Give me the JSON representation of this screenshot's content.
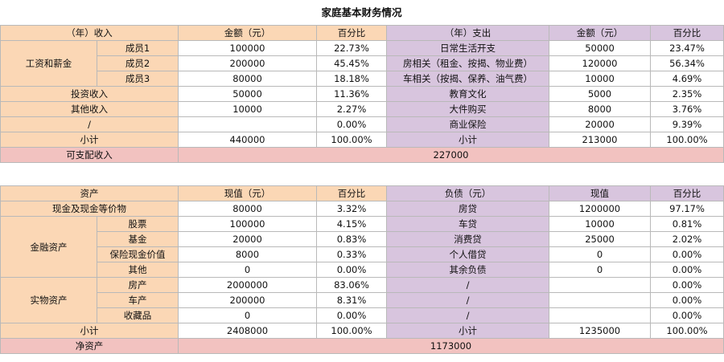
{
  "title": "家庭基本财务情况",
  "income": {
    "header": [
      "（年）收入",
      "金额（元）",
      "百分比",
      "（年）支出",
      "金额（元）",
      "百分比"
    ],
    "salary_group": "工资和薪金",
    "members": [
      {
        "name": "成员1",
        "amount": "100000",
        "pct": "22.73%"
      },
      {
        "name": "成员2",
        "amount": "200000",
        "pct": "45.45%"
      },
      {
        "name": "成员3",
        "amount": "80000",
        "pct": "18.18%"
      }
    ],
    "other_income": [
      {
        "name": "投资收入",
        "amount": "50000",
        "pct": "11.36%"
      },
      {
        "name": "其他收入",
        "amount": "10000",
        "pct": "2.27%"
      },
      {
        "name": "/",
        "amount": "",
        "pct": "0.00%"
      }
    ],
    "expenses": [
      {
        "name": "日常生活开支",
        "amount": "50000",
        "pct": "23.47%"
      },
      {
        "name": "房相关（租金、按揭、物业费）",
        "amount": "120000",
        "pct": "56.34%"
      },
      {
        "name": "车相关（按揭、保养、油气费）",
        "amount": "10000",
        "pct": "4.69%"
      },
      {
        "name": "教育文化",
        "amount": "5000",
        "pct": "2.35%"
      },
      {
        "name": "大件购买",
        "amount": "8000",
        "pct": "3.76%"
      },
      {
        "name": "商业保险",
        "amount": "20000",
        "pct": "9.39%"
      }
    ],
    "subtotal": {
      "label": "小计",
      "income_amount": "440000",
      "income_pct": "100.00%",
      "expense_label": "小计",
      "expense_amount": "213000",
      "expense_pct": "100.00%"
    },
    "disposable": {
      "label": "可支配收入",
      "value": "227000"
    }
  },
  "assets": {
    "header": [
      "资产",
      "现值（元）",
      "百分比",
      "负债（元）",
      "现值",
      "百分比"
    ],
    "cash": {
      "name": "现金及现金等价物",
      "value": "80000",
      "pct": "3.32%"
    },
    "financial_group": "金融资产",
    "financial": [
      {
        "name": "股票",
        "value": "100000",
        "pct": "4.15%"
      },
      {
        "name": "基金",
        "value": "20000",
        "pct": "0.83%"
      },
      {
        "name": "保险现金价值",
        "value": "8000",
        "pct": "0.33%"
      },
      {
        "name": "其他",
        "value": "0",
        "pct": "0.00%"
      }
    ],
    "physical_group": "实物资产",
    "physical": [
      {
        "name": "房产",
        "value": "2000000",
        "pct": "83.06%"
      },
      {
        "name": "车产",
        "value": "200000",
        "pct": "8.31%"
      },
      {
        "name": "收藏品",
        "value": "0",
        "pct": "0.00%"
      }
    ],
    "liabilities": [
      {
        "name": "房贷",
        "value": "1200000",
        "pct": "97.17%"
      },
      {
        "name": "车贷",
        "value": "10000",
        "pct": "0.81%"
      },
      {
        "name": "消费贷",
        "value": "25000",
        "pct": "2.02%"
      },
      {
        "name": "个人借贷",
        "value": "0",
        "pct": "0.00%"
      },
      {
        "name": "其余负债",
        "value": "0",
        "pct": "0.00%"
      },
      {
        "name": "/",
        "value": "",
        "pct": "0.00%"
      },
      {
        "name": "/",
        "value": "",
        "pct": "0.00%"
      },
      {
        "name": "/",
        "value": "",
        "pct": "0.00%"
      }
    ],
    "subtotal": {
      "label": "小计",
      "asset_value": "2408000",
      "asset_pct": "100.00%",
      "liab_label": "小计",
      "liab_value": "1235000",
      "liab_pct": "100.00%"
    },
    "net": {
      "label": "净资产",
      "value": "1173000"
    }
  }
}
